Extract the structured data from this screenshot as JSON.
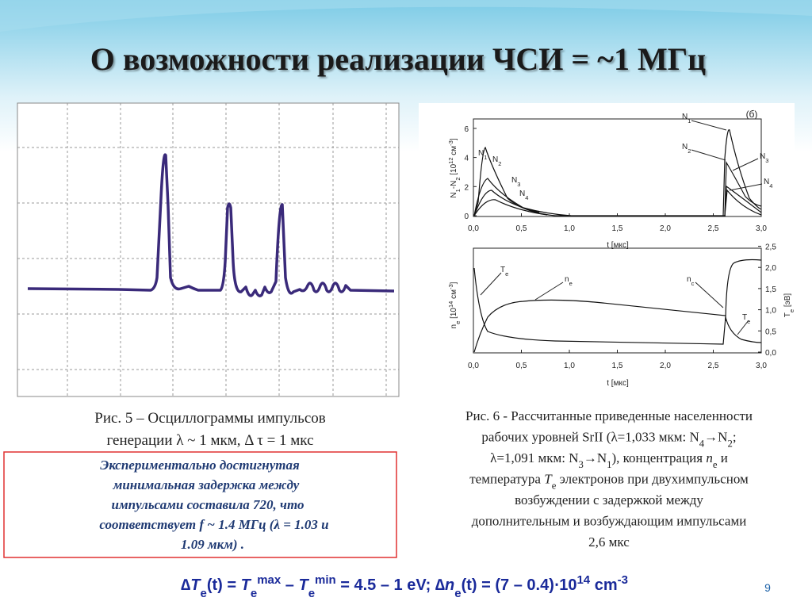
{
  "title": "О возможности реализации ЧСИ = ~1 МГц",
  "figure5": {
    "caption": [
      [
        "Рис. 5 – Осциллограммы импульсов"
      ],
      [
        "генерации λ ~ 1 мкм, Δ τ = 1 мкс"
      ]
    ]
  },
  "note": {
    "lines": [
      "Экспериментально достигнутая",
      "минимальная задержка между",
      "импульсами составила 720, что",
      "соответствует  f ~ 1.4 МГц  (λ = 1.03 и",
      "1.09 мкм) ."
    ]
  },
  "figure6": {
    "panel_label": "(б)",
    "top": {
      "y_label": [
        "N",
        {
          "text": "1",
          "style": "sub"
        },
        "-N",
        {
          "text": "2",
          "style": "sub"
        },
        " [10",
        {
          "text": "12",
          "style": "sup"
        },
        " см",
        {
          "text": "-3",
          "style": "sup"
        },
        "]"
      ],
      "yticks": [
        "0",
        "2",
        "4",
        "6"
      ],
      "xticks": [
        "0,0",
        "0,5",
        "1,0",
        "1,5",
        "2,0",
        "2,5",
        "3,0"
      ],
      "x_label": "t [мкс]",
      "curve_labels": [
        [
          "N",
          {
            "text": "1",
            "style": "sub"
          }
        ],
        [
          "N",
          {
            "text": "2",
            "style": "sub"
          }
        ],
        [
          "N",
          {
            "text": "3",
            "style": "sub"
          }
        ],
        [
          "N",
          {
            "text": "4",
            "style": "sub"
          }
        ],
        [
          "N",
          {
            "text": "1",
            "style": "sub"
          }
        ],
        [
          "N",
          {
            "text": "2",
            "style": "sub"
          }
        ],
        [
          "N",
          {
            "text": "3",
            "style": "sub"
          }
        ],
        [
          "N",
          {
            "text": "4",
            "style": "sub"
          }
        ]
      ]
    },
    "bottom": {
      "y_label": [
        "n",
        {
          "text": "e",
          "style": "sub"
        },
        " [10",
        {
          "text": "14",
          "style": "sup"
        },
        " см",
        {
          "text": "-3",
          "style": "sup"
        },
        "]"
      ],
      "y2_label": [
        "T",
        {
          "text": "e",
          "style": "sub"
        },
        " [эВ]"
      ],
      "y2ticks": [
        "0,0",
        "0,5",
        "1,0",
        "1,5",
        "2,0",
        "2,5"
      ],
      "xticks": [
        "0,0",
        "0,5",
        "1,0",
        "1,5",
        "2,0",
        "2,5",
        "3,0"
      ],
      "x_label": "t [мкс]",
      "curve_labels": [
        [
          "T",
          {
            "text": "e",
            "style": "sub"
          }
        ],
        [
          "n",
          {
            "text": "e",
            "style": "sub"
          }
        ],
        [
          "n",
          {
            "text": "c",
            "style": "sub"
          }
        ],
        [
          "T",
          {
            "text": "e",
            "style": "sub"
          }
        ]
      ]
    },
    "caption": [
      [
        "Рис. 6 - Рассчитанные приведенные населенности"
      ],
      [
        "рабочих уровней SrII  (λ=1,033 мкм: N",
        {
          "text": "4",
          "style": "sub"
        },
        "→N",
        {
          "text": "2",
          "style": "sub"
        },
        ";"
      ],
      [
        "λ=1,091 мкм: N",
        {
          "text": "3",
          "style": "sub"
        },
        "→N",
        {
          "text": "1",
          "style": "sub"
        },
        "), концентрация ",
        {
          "text": "n",
          "style": "i"
        },
        {
          "text": "e",
          "style": "sub"
        },
        " и"
      ],
      [
        "температура ",
        {
          "text": "T",
          "style": "i"
        },
        {
          "text": "e",
          "style": "sub"
        },
        " электронов при двухимпульсном"
      ],
      [
        "возбуждении с задержкой между"
      ],
      [
        "дополнительным и возбуждающим импульсами"
      ],
      [
        "2,6 мкс"
      ]
    ]
  },
  "formula": [
    "∆",
    {
      "text": "T",
      "style": "i"
    },
    {
      "text": "e",
      "style": "sub"
    },
    "(t) = ",
    {
      "text": "T",
      "style": "i"
    },
    {
      "text": "e",
      "style": "sub"
    },
    {
      "text": "max",
      "style": "sup"
    },
    " – ",
    {
      "text": "T",
      "style": "i"
    },
    {
      "text": "e",
      "style": "sub"
    },
    {
      "text": "min",
      "style": "sup"
    },
    " = 4.5 – 1 eV; ∆",
    {
      "text": "n",
      "style": "i"
    },
    {
      "text": "e",
      "style": "sub"
    },
    "(t) = (7 – 0.4)⋅10",
    {
      "text": "14",
      "style": "sup"
    },
    " cm",
    {
      "text": "-3",
      "style": "sup"
    }
  ],
  "page_number": "9"
}
